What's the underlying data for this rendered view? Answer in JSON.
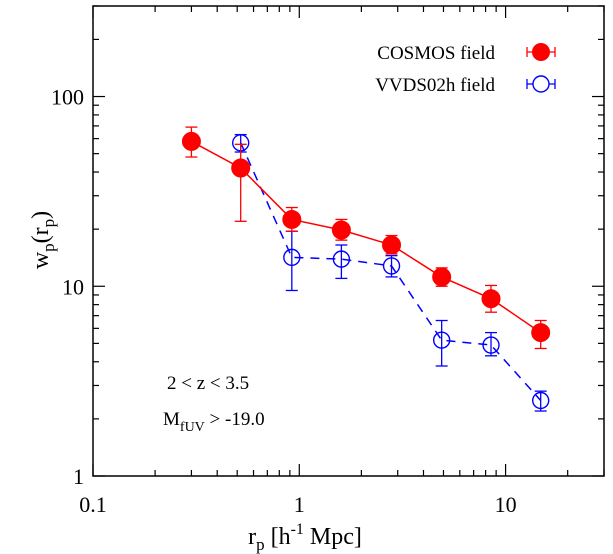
{
  "chart_data": {
    "type": "scatter",
    "xscale": "log",
    "yscale": "log",
    "xlim": [
      0.1,
      30
    ],
    "ylim": [
      1,
      300
    ],
    "xticks": [
      {
        "value": 0.1,
        "label": "0.1"
      },
      {
        "value": 1,
        "label": "1"
      },
      {
        "value": 10,
        "label": "10"
      }
    ],
    "yticks": [
      {
        "value": 1,
        "label": "1"
      },
      {
        "value": 10,
        "label": "10"
      },
      {
        "value": 100,
        "label": "100"
      }
    ],
    "xlabel": {
      "main": "r",
      "sub": "p",
      "rest1": " [h",
      "sup": "-1",
      "rest2": " Mpc]"
    },
    "ylabel": {
      "main": "w",
      "sub1": "p",
      "mid": "(r",
      "sub2": "p",
      "end": ")"
    },
    "annotations": {
      "line1": "2 < z < 3.5",
      "line2_main": "M",
      "line2_sub": "fUV",
      "line2_rest": " > -19.0"
    },
    "legend_position": "top-right",
    "series": [
      {
        "name": "COSMOS field",
        "color": "#ff0000",
        "marker": "filled-circle",
        "line": "solid",
        "points": [
          {
            "x": 0.3,
            "y": 58,
            "ylo": 48,
            "yhi": 69
          },
          {
            "x": 0.52,
            "y": 42,
            "ylo": 22,
            "yhi": 56
          },
          {
            "x": 0.92,
            "y": 22.5,
            "ylo": 19.5,
            "yhi": 26
          },
          {
            "x": 1.6,
            "y": 19.8,
            "ylo": 17.5,
            "yhi": 22.5
          },
          {
            "x": 2.8,
            "y": 16.5,
            "ylo": 14.8,
            "yhi": 18.5
          },
          {
            "x": 4.9,
            "y": 11.2,
            "ylo": 10.0,
            "yhi": 12.5
          },
          {
            "x": 8.5,
            "y": 8.6,
            "ylo": 7.3,
            "yhi": 10.1
          },
          {
            "x": 14.8,
            "y": 5.7,
            "ylo": 4.7,
            "yhi": 6.6
          }
        ]
      },
      {
        "name": "VVDS02h field",
        "color": "#0000ff",
        "marker": "open-circle",
        "line": "dashed",
        "points": [
          {
            "x": 0.52,
            "y": 57,
            "ylo": 51,
            "yhi": 63
          },
          {
            "x": 0.92,
            "y": 14.2,
            "ylo": 9.5,
            "yhi": 19.5
          },
          {
            "x": 1.6,
            "y": 13.9,
            "ylo": 11.0,
            "yhi": 16.5
          },
          {
            "x": 2.8,
            "y": 12.8,
            "ylo": 11.2,
            "yhi": 14.5
          },
          {
            "x": 4.9,
            "y": 5.2,
            "ylo": 3.8,
            "yhi": 6.6
          },
          {
            "x": 8.5,
            "y": 4.9,
            "ylo": 4.3,
            "yhi": 5.7
          },
          {
            "x": 14.8,
            "y": 2.5,
            "ylo": 2.2,
            "yhi": 2.8
          }
        ]
      }
    ]
  }
}
